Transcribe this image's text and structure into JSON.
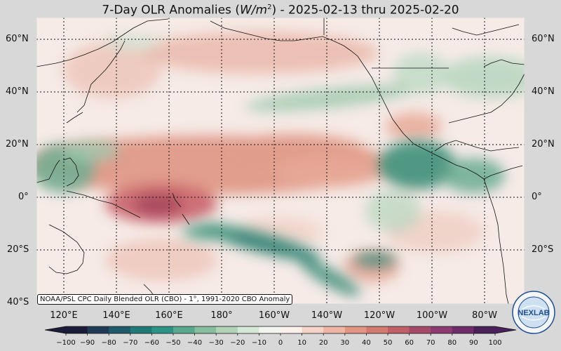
{
  "title": {
    "prefix": "7-Day OLR Anomalies (",
    "unit_base": "W/m",
    "unit_exp": "2",
    "suffix": ") - 2025-02-13 thru 2025-02-20"
  },
  "source_label": "NOAA/PSL CPC Daily Blended OLR (CBO) - 1°, 1991-2020 CBO Anomaly",
  "lat_labels": [
    "60°N",
    "40°N",
    "20°N",
    "0°",
    "20°S",
    "40°S"
  ],
  "lon_labels": [
    "120°E",
    "140°E",
    "160°E",
    "180°",
    "160°W",
    "140°W",
    "120°W",
    "100°W",
    "80°W"
  ],
  "colorbar": {
    "ticks": [
      "−100",
      "−90",
      "−80",
      "−70",
      "−60",
      "−50",
      "−40",
      "−30",
      "−20",
      "−10",
      "0",
      "10",
      "20",
      "30",
      "40",
      "50",
      "60",
      "70",
      "80",
      "90",
      "100"
    ],
    "colors": [
      "#1b1b3a",
      "#1f3a57",
      "#1f5a6a",
      "#1f7a78",
      "#2e9387",
      "#5aa98f",
      "#86be9f",
      "#b1d4b8",
      "#d6e8d8",
      "#f1f4ef",
      "#fbf0ec",
      "#f5d3c8",
      "#eeb4a4",
      "#e39584",
      "#d37a70",
      "#c05f68",
      "#a64a6a",
      "#8c3a6f",
      "#6e2c6a",
      "#4a1f5a"
    ]
  },
  "logo_text": "NEXLAB",
  "colors": {
    "positive": "#d9806f",
    "negative": "#3f9a7e",
    "neutral": "#f7ede9",
    "background": "#d8d8d8"
  }
}
